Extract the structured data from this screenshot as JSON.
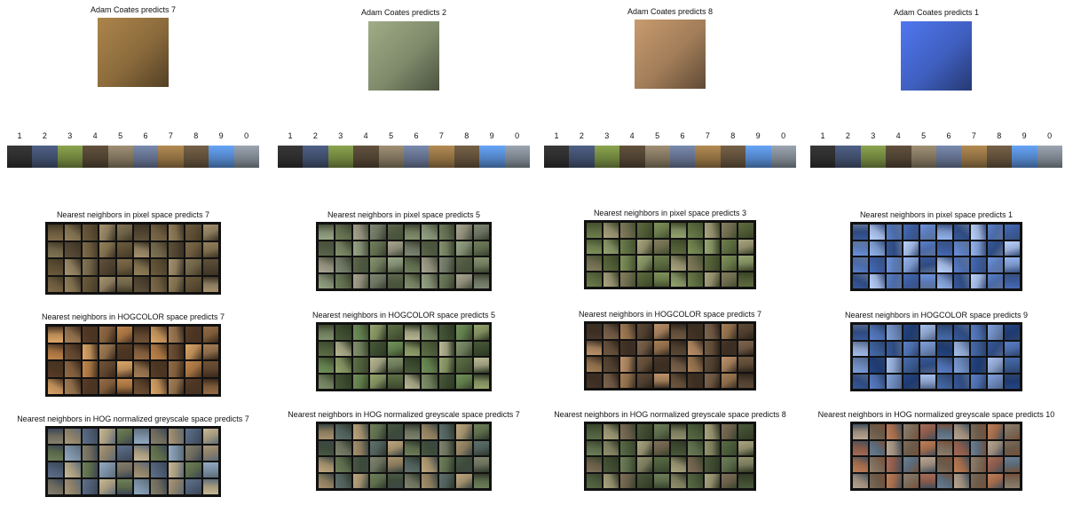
{
  "legend_numbers": [
    "1",
    "2",
    "3",
    "4",
    "5",
    "6",
    "7",
    "8",
    "9",
    "0"
  ],
  "legend_colors": [
    "#2b2b2b",
    "#3d4a66",
    "#6b7f3c",
    "#4b3f2f",
    "#7a6e59",
    "#5e6a86",
    "#8a6b3f",
    "#5b4b37",
    "#4f7fbf",
    "#777f88"
  ],
  "panels": [
    {
      "query_title": "Adam Coates predicts 7",
      "query_color": "#8a6a3c",
      "sections": [
        {
          "title": "Nearest neighbors in pixel space predicts 7",
          "palette": [
            "#6b5a3e",
            "#7c6c4c",
            "#5b4d33",
            "#8a7a5c",
            "#6d6247",
            "#4f4330"
          ]
        },
        {
          "title": "Nearest neighbors in HOGCOLOR space predicts 7",
          "palette": [
            "#7c5a3a",
            "#a2703f",
            "#5e442d",
            "#b88a56",
            "#8a6a48",
            "#4b3422"
          ]
        },
        {
          "title": "Nearest neighbors in HOG normalized greyscale space predicts 7",
          "palette": [
            "#6e6a5c",
            "#8c7f67",
            "#4e5d73",
            "#a69a7e",
            "#5b6a4a",
            "#7a8ea2"
          ]
        }
      ]
    },
    {
      "query_title": "Adam Coates predicts 2",
      "query_color": "#7f8a6b",
      "sections": [
        {
          "title": "Nearest neighbors in pixel space predicts 5",
          "palette": [
            "#6f7a5c",
            "#7f8a70",
            "#5e6a4d",
            "#8d8a78",
            "#6a7160",
            "#4e573f"
          ]
        },
        {
          "title": "Nearest neighbors in HOGCOLOR space predicts 5",
          "palette": [
            "#5e7a4a",
            "#7d8a5c",
            "#4e5d3a",
            "#9a9a7c",
            "#6c7a5a",
            "#3b4a2e"
          ]
        },
        {
          "title": "Nearest neighbors in HOG normalized greyscale space predicts 7",
          "palette": [
            "#6a6f5c",
            "#8a7a5c",
            "#4f5e5a",
            "#9e8c6a",
            "#5c6b4b",
            "#3d4a3a"
          ]
        }
      ]
    },
    {
      "query_title": "Adam Coates predicts 8",
      "query_color": "#a07c58",
      "sections": [
        {
          "title": "Nearest neighbors in pixel space predicts 3",
          "palette": [
            "#6a7a4a",
            "#7d8a5e",
            "#5b6a3f",
            "#8e8a6a",
            "#6e6a4e",
            "#4e5a34"
          ]
        },
        {
          "title": "Nearest neighbors in HOGCOLOR space predicts 7",
          "palette": [
            "#6a5440",
            "#8a6a48",
            "#4e3e2e",
            "#9e7a58",
            "#5e4a36",
            "#3c2e22"
          ]
        },
        {
          "title": "Nearest neighbors in HOG normalized greyscale space predicts 8",
          "palette": [
            "#5b6a4a",
            "#7a7a5c",
            "#4a5a3a",
            "#8e8a6a",
            "#6a5e4a",
            "#3e4a30"
          ]
        }
      ]
    },
    {
      "query_title": "Adam Coates predicts 1",
      "query_color": "#3f5fbf",
      "sections": [
        {
          "title": "Nearest neighbors in pixel space predicts 1",
          "palette": [
            "#3a5a9a",
            "#5a7ab8",
            "#7a96c8",
            "#2e4a80",
            "#9ab0d8",
            "#4a6aa8"
          ]
        },
        {
          "title": "Nearest neighbors in HOGCOLOR space predicts 9",
          "palette": [
            "#2e4a80",
            "#4a6aa8",
            "#6a86b8",
            "#1e3a70",
            "#8aa0c8",
            "#3a5a90"
          ]
        },
        {
          "title": "Nearest neighbors in HOG normalized greyscale space predicts 10",
          "palette": [
            "#7a6a5a",
            "#8a5a4a",
            "#5a6a7a",
            "#9a8a7a",
            "#6a5a4a",
            "#a06a4a"
          ]
        }
      ]
    }
  ]
}
